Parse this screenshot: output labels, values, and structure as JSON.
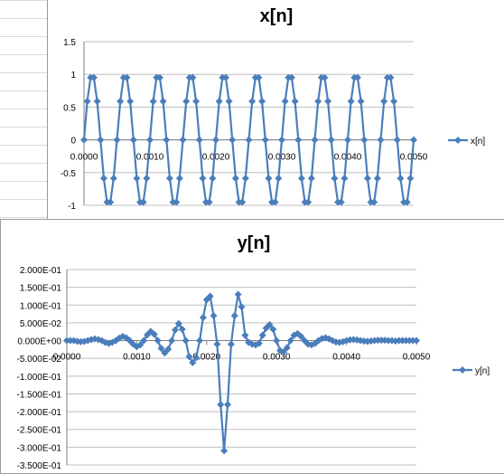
{
  "chart_data": [
    {
      "type": "line",
      "title": "x[n]",
      "xlabel": "",
      "ylabel": "",
      "xlim": [
        0,
        0.005
      ],
      "ylim": [
        -1,
        1.5
      ],
      "x_ticks": [
        0,
        0.001,
        0.002,
        0.003,
        0.004,
        0.005
      ],
      "x_tick_labels": [
        "0.0000",
        "0.0010",
        "0.0020",
        "0.0030",
        "0.0040",
        "0.0050"
      ],
      "y_ticks": [
        1.5,
        1,
        0.5,
        0,
        -0.5,
        -1
      ],
      "y_tick_labels": [
        "1.5",
        "1",
        "0.5",
        "0",
        "-0.5",
        "-1"
      ],
      "grid": "horizontal",
      "legend": "right",
      "marker": "diamond",
      "color": "#4a7ebb",
      "series": [
        {
          "name": "x[n]",
          "x": [
            0,
            5e-05,
            0.0001,
            0.00015,
            0.0002,
            0.00025,
            0.0003,
            0.00035,
            0.0004,
            0.00045,
            0.0005,
            0.00055,
            0.0006,
            0.00065,
            0.0007,
            0.00075,
            0.0008,
            0.00085,
            0.0009,
            0.00095,
            0.001,
            0.00105,
            0.0011,
            0.00115,
            0.0012,
            0.00125,
            0.0013,
            0.00135,
            0.0014,
            0.00145,
            0.0015,
            0.00155,
            0.0016,
            0.00165,
            0.0017,
            0.00175,
            0.0018,
            0.00185,
            0.0019,
            0.00195,
            0.002,
            0.00205,
            0.0021,
            0.00215,
            0.0022,
            0.00225,
            0.0023,
            0.00235,
            0.0024,
            0.00245,
            0.0025,
            0.00255,
            0.0026,
            0.00265,
            0.0027,
            0.00275,
            0.0028,
            0.00285,
            0.0029,
            0.00295,
            0.003,
            0.00305,
            0.0031,
            0.00315,
            0.0032,
            0.00325,
            0.0033,
            0.00335,
            0.0034,
            0.00345,
            0.0035,
            0.00355,
            0.0036,
            0.00365,
            0.0037,
            0.00375,
            0.0038,
            0.00385,
            0.0039,
            0.00395,
            0.004,
            0.00405,
            0.0041,
            0.00415,
            0.0042,
            0.00425,
            0.0043,
            0.00435,
            0.0044,
            0.00445,
            0.0045,
            0.00455,
            0.0046,
            0.00465,
            0.0047,
            0.00475,
            0.0048,
            0.00485,
            0.0049,
            0.00495,
            0.005
          ],
          "values": [
            0,
            0.588,
            0.951,
            0.951,
            0.588,
            0,
            -0.588,
            -0.951,
            -0.951,
            -0.588,
            0,
            0.588,
            0.951,
            0.951,
            0.588,
            0,
            -0.588,
            -0.951,
            -0.951,
            -0.588,
            0,
            0.588,
            0.951,
            0.951,
            0.588,
            0,
            -0.588,
            -0.951,
            -0.951,
            -0.588,
            0,
            0.588,
            0.951,
            0.951,
            0.588,
            0,
            -0.588,
            -0.951,
            -0.951,
            -0.588,
            0,
            0.588,
            0.951,
            0.951,
            0.588,
            0,
            -0.588,
            -0.951,
            -0.951,
            -0.588,
            0,
            0.588,
            0.951,
            0.951,
            0.588,
            0,
            -0.588,
            -0.951,
            -0.951,
            -0.588,
            0,
            0.588,
            0.951,
            0.951,
            0.588,
            0,
            -0.588,
            -0.951,
            -0.951,
            -0.588,
            0,
            0.588,
            0.951,
            0.951,
            0.588,
            0,
            -0.588,
            -0.951,
            -0.951,
            -0.588,
            0,
            0.588,
            0.951,
            0.951,
            0.588,
            0,
            -0.588,
            -0.951,
            -0.951,
            -0.588,
            0,
            0.588,
            0.951,
            0.951,
            0.588,
            0,
            -0.588,
            -0.951,
            -0.951,
            -0.588,
            0
          ]
        }
      ]
    },
    {
      "type": "line",
      "title": "y[n]",
      "xlabel": "",
      "ylabel": "",
      "xlim": [
        0,
        0.005
      ],
      "ylim": [
        -0.35,
        0.2
      ],
      "x_ticks": [
        0,
        0.001,
        0.002,
        0.003,
        0.004,
        0.005
      ],
      "x_tick_labels": [
        "0.0000",
        "0.0010",
        "0.0020",
        "0.0030",
        "0.0040",
        "0.0050"
      ],
      "y_ticks": [
        0.2,
        0.15,
        0.1,
        0.05,
        0,
        -0.05,
        -0.1,
        -0.15,
        -0.2,
        -0.25,
        -0.3,
        -0.35
      ],
      "y_tick_labels": [
        "2.000E-01",
        "1.500E-01",
        "1.000E-01",
        "5.000E-02",
        "0.000E+00",
        "-5.000E-02",
        "-1.000E-01",
        "-1.500E-01",
        "-2.000E-01",
        "-2.500E-01",
        "-3.000E-01",
        "-3.500E-01"
      ],
      "grid": "horizontal",
      "legend": "right",
      "marker": "diamond",
      "color": "#4a7ebb",
      "series": [
        {
          "name": "y[n]",
          "x": [
            0,
            5e-05,
            0.0001,
            0.00015,
            0.0002,
            0.00025,
            0.0003,
            0.00035,
            0.0004,
            0.00045,
            0.0005,
            0.00055,
            0.0006,
            0.00065,
            0.0007,
            0.00075,
            0.0008,
            0.00085,
            0.0009,
            0.00095,
            0.001,
            0.00105,
            0.0011,
            0.00115,
            0.0012,
            0.00125,
            0.0013,
            0.00135,
            0.0014,
            0.00145,
            0.0015,
            0.00155,
            0.0016,
            0.00165,
            0.0017,
            0.00175,
            0.0018,
            0.00185,
            0.0019,
            0.00195,
            0.002,
            0.00205,
            0.0021,
            0.00215,
            0.0022,
            0.00225,
            0.0023,
            0.00235,
            0.0024,
            0.00245,
            0.0025,
            0.00255,
            0.0026,
            0.00265,
            0.0027,
            0.00275,
            0.0028,
            0.00285,
            0.0029,
            0.00295,
            0.003,
            0.00305,
            0.0031,
            0.00315,
            0.0032,
            0.00325,
            0.0033,
            0.00335,
            0.0034,
            0.00345,
            0.0035,
            0.00355,
            0.0036,
            0.00365,
            0.0037,
            0.00375,
            0.0038,
            0.00385,
            0.0039,
            0.00395,
            0.004,
            0.00405,
            0.0041,
            0.00415,
            0.0042,
            0.00425,
            0.0043,
            0.00435,
            0.0044,
            0.00445,
            0.0045,
            0.00455,
            0.0046,
            0.00465,
            0.0047,
            0.00475,
            0.0048,
            0.00485,
            0.0049,
            0.00495,
            0.005
          ],
          "values": [
            0,
            0,
            0,
            -0.002,
            -0.003,
            -0.002,
            0,
            0.003,
            0.005,
            0.003,
            0,
            -0.005,
            -0.008,
            -0.005,
            0,
            0.007,
            0.012,
            0.008,
            0,
            -0.01,
            -0.017,
            -0.012,
            0,
            0.016,
            0.026,
            0.018,
            0,
            -0.022,
            -0.035,
            -0.024,
            0,
            0.03,
            0.048,
            0.032,
            0,
            -0.045,
            -0.062,
            -0.048,
            0,
            0.065,
            0.115,
            0.125,
            0.07,
            -0.01,
            -0.18,
            -0.31,
            -0.18,
            -0.01,
            0.07,
            0.13,
            0.095,
            0.015,
            -0.005,
            -0.01,
            -0.012,
            -0.008,
            0.015,
            0.035,
            0.045,
            0.032,
            0,
            -0.028,
            -0.032,
            -0.02,
            0,
            0.015,
            0.02,
            0.012,
            0,
            -0.01,
            -0.012,
            -0.008,
            0,
            0.006,
            0.008,
            0.005,
            0,
            -0.004,
            -0.005,
            -0.003,
            0,
            0.002,
            0.003,
            0.002,
            0,
            -0.001,
            -0.002,
            -0.001,
            0,
            0.001,
            0.001,
            0.001,
            0,
            0,
            -0.001,
            0,
            0,
            0,
            0,
            0,
            0
          ]
        }
      ]
    }
  ]
}
